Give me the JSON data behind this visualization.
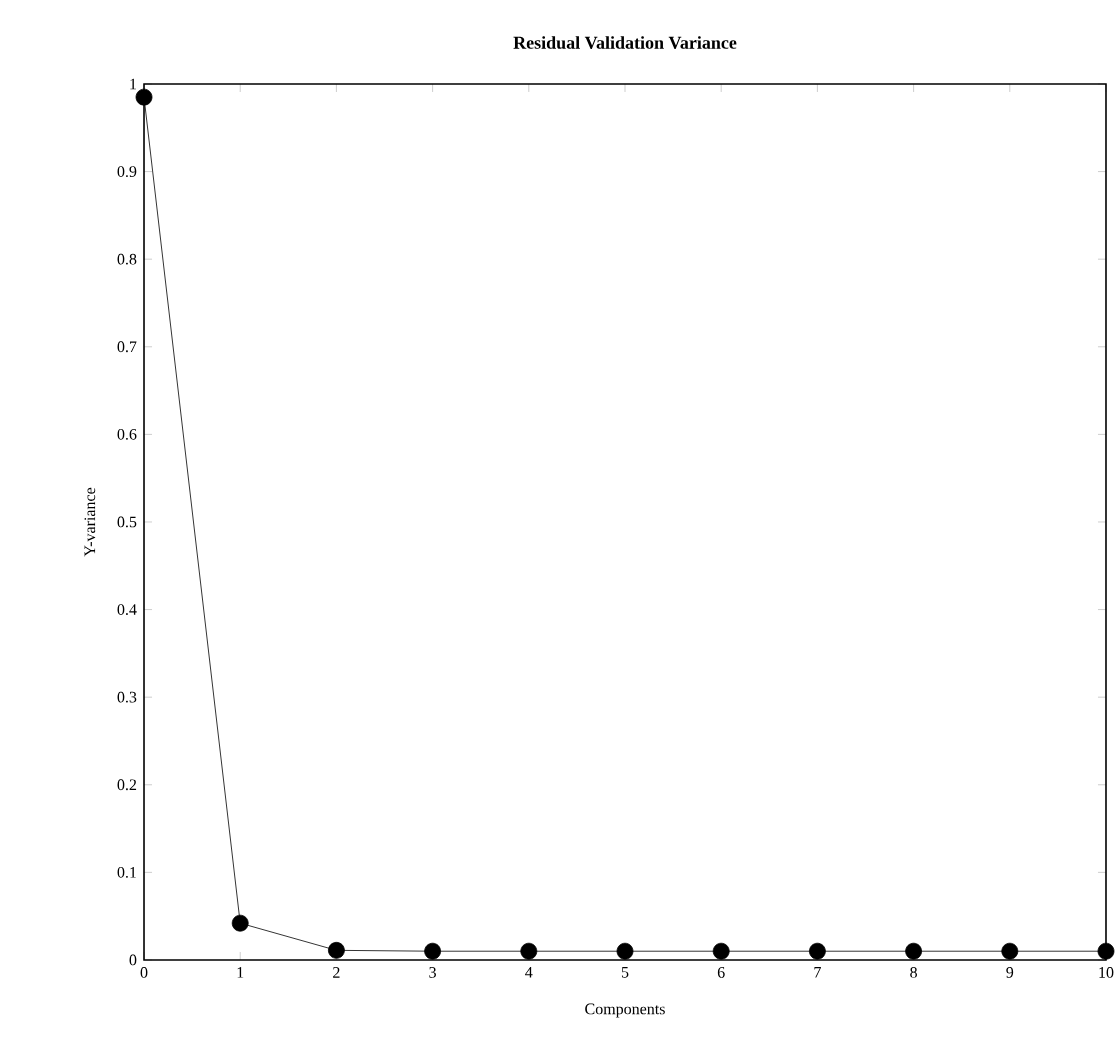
{
  "chart_data": {
    "type": "line",
    "title": "Residual Validation Variance",
    "xlabel": "Components",
    "ylabel": "Y-variance",
    "x": [
      0,
      1,
      2,
      3,
      4,
      5,
      6,
      7,
      8,
      9,
      10
    ],
    "values": [
      0.985,
      0.042,
      0.011,
      0.01,
      0.01,
      0.01,
      0.01,
      0.01,
      0.01,
      0.01,
      0.01
    ],
    "color": "#000000",
    "marker": "circle",
    "line_style": "solid",
    "xlim": [
      0,
      10
    ],
    "xticks": [
      0,
      1,
      2,
      3,
      4,
      5,
      6,
      7,
      8,
      9,
      10
    ],
    "ylim": [
      0,
      1
    ],
    "yticks": [
      0,
      0.1,
      0.2,
      0.3,
      0.4,
      0.5,
      0.6,
      0.7,
      0.8,
      0.9,
      1
    ]
  }
}
